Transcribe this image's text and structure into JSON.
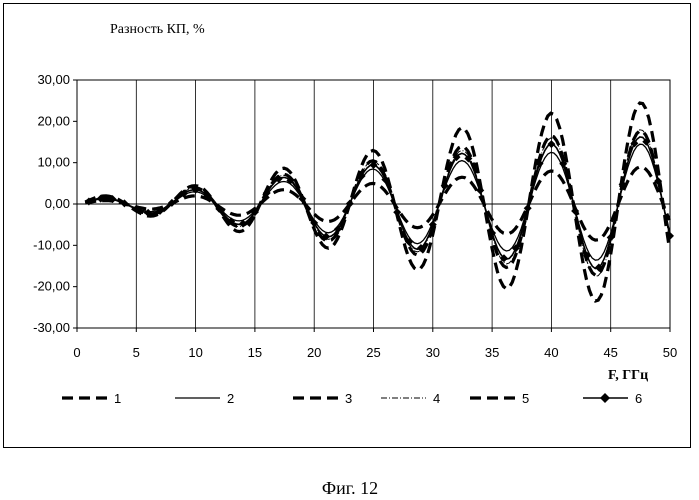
{
  "figure_caption": "Фиг. 12",
  "chart_data": {
    "type": "line",
    "ylabel": "Разность КП, %",
    "xlabel": "F, ГГц",
    "xlim": [
      0,
      50
    ],
    "ylim": [
      -30,
      30
    ],
    "x_ticks": [
      0,
      5,
      10,
      15,
      20,
      25,
      30,
      35,
      40,
      45,
      50
    ],
    "y_ticks": [
      "30,00",
      "20,00",
      "10,00",
      "0,00",
      "-10,00",
      "-20,00",
      "-30,00"
    ],
    "grid": "vertical",
    "legend_position": "bottom",
    "series": [
      {
        "name": "1",
        "style": "dash-thick",
        "amplitude": [
          1.2,
          2.0,
          4.0,
          6.0,
          8.5,
          10.5,
          13.0,
          15.0,
          16.5,
          17.5,
          18.0
        ]
      },
      {
        "name": "2",
        "style": "solid-thin",
        "amplitude": [
          1.0,
          1.5,
          3.0,
          4.5,
          6.5,
          8.5,
          10.0,
          11.0,
          12.5,
          14.0,
          15.0
        ]
      },
      {
        "name": "3",
        "style": "dash-thick",
        "amplitude": [
          1.5,
          2.5,
          4.5,
          7.5,
          10.0,
          13.0,
          17.0,
          20.0,
          22.0,
          24.0,
          25.0
        ]
      },
      {
        "name": "4",
        "style": "dashdot-thin",
        "amplitude": [
          1.2,
          2.0,
          4.0,
          6.0,
          8.0,
          10.5,
          12.0,
          14.0,
          16.0,
          18.0,
          18.0
        ]
      },
      {
        "name": "5",
        "style": "dash-thick",
        "amplitude": [
          0.7,
          1.0,
          2.0,
          3.0,
          4.0,
          5.0,
          6.0,
          7.0,
          8.0,
          9.0,
          9.0
        ]
      },
      {
        "name": "6",
        "style": "solid-diamond",
        "amplitude": [
          1.0,
          1.8,
          3.5,
          5.5,
          7.5,
          9.5,
          11.5,
          13.0,
          14.5,
          16.0,
          16.5
        ]
      }
    ]
  }
}
